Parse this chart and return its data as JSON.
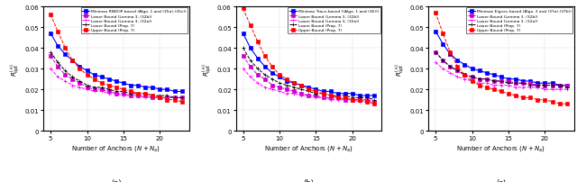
{
  "x": [
    5,
    6,
    7,
    8,
    9,
    10,
    11,
    12,
    13,
    14,
    15,
    16,
    17,
    18,
    19,
    20,
    21,
    22,
    23
  ],
  "subplots": [
    {
      "label": "(a)",
      "ylim": [
        0,
        0.06
      ],
      "yticks": [
        0,
        0.01,
        0.02,
        0.03,
        0.04,
        0.05,
        0.06
      ],
      "series": [
        {
          "name": "Minimax RNDOP-based (Algo. 1 and (35a)-(35c))",
          "color": "blue",
          "linestyle": "-",
          "marker": "s",
          "markersize": 2.5,
          "linewidth": 0.8,
          "dashed": false,
          "values": [
            0.047,
            0.041,
            0.037,
            0.034,
            0.031,
            0.029,
            0.027,
            0.026,
            0.025,
            0.024,
            0.023,
            0.022,
            0.022,
            0.021,
            0.021,
            0.02,
            0.02,
            0.019,
            0.019
          ]
        },
        {
          "name": "Lower Bound (Lemma 3, (32b))",
          "color": "#cc00cc",
          "linestyle": "--",
          "marker": "s",
          "markersize": 2.5,
          "linewidth": 0.7,
          "dashed": true,
          "values": [
            0.036,
            0.031,
            0.027,
            0.025,
            0.023,
            0.021,
            0.02,
            0.02,
            0.019,
            0.018,
            0.018,
            0.017,
            0.017,
            0.017,
            0.016,
            0.016,
            0.016,
            0.016,
            0.016
          ]
        },
        {
          "name": "Lower Bound (Lemma 3, (32a))",
          "color": "magenta",
          "linestyle": "--",
          "marker": "+",
          "markersize": 3.5,
          "linewidth": 0.7,
          "dashed": true,
          "values": [
            0.03,
            0.026,
            0.024,
            0.022,
            0.021,
            0.02,
            0.019,
            0.019,
            0.018,
            0.018,
            0.017,
            0.017,
            0.017,
            0.016,
            0.016,
            0.016,
            0.016,
            0.016,
            0.016
          ]
        },
        {
          "name": "Lower Bound (Prop. 7)",
          "color": "black",
          "linestyle": "--",
          "marker": "+",
          "markersize": 3.5,
          "linewidth": 0.7,
          "dashed": true,
          "values": [
            0.038,
            0.033,
            0.029,
            0.026,
            0.024,
            0.022,
            0.021,
            0.021,
            0.02,
            0.019,
            0.019,
            0.018,
            0.018,
            0.018,
            0.017,
            0.017,
            0.017,
            0.016,
            0.016
          ]
        },
        {
          "name": "Upper Bound (Prop. 7)",
          "color": "red",
          "linestyle": "--",
          "marker": "s",
          "markersize": 2.5,
          "linewidth": 0.7,
          "dashed": true,
          "values": [
            0.056,
            0.048,
            0.04,
            0.034,
            0.03,
            0.027,
            0.025,
            0.023,
            0.022,
            0.021,
            0.02,
            0.019,
            0.018,
            0.018,
            0.017,
            0.016,
            0.015,
            0.015,
            0.014
          ]
        }
      ]
    },
    {
      "label": "(b)",
      "ylim": [
        0,
        0.06
      ],
      "yticks": [
        0,
        0.01,
        0.02,
        0.03,
        0.04,
        0.05,
        0.06
      ],
      "series": [
        {
          "name": "Minimax Trace-based ((Algo. 1 and (36)))",
          "color": "blue",
          "linestyle": "-",
          "marker": "s",
          "markersize": 2.5,
          "linewidth": 0.8,
          "dashed": false,
          "values": [
            0.047,
            0.04,
            0.035,
            0.031,
            0.028,
            0.026,
            0.024,
            0.023,
            0.022,
            0.021,
            0.02,
            0.019,
            0.019,
            0.018,
            0.018,
            0.018,
            0.017,
            0.017,
            0.017
          ]
        },
        {
          "name": "Lower Bound (Lemma 3, (32b))",
          "color": "#cc00cc",
          "linestyle": "--",
          "marker": "s",
          "markersize": 2.5,
          "linewidth": 0.7,
          "dashed": true,
          "values": [
            0.036,
            0.031,
            0.027,
            0.025,
            0.022,
            0.021,
            0.02,
            0.019,
            0.018,
            0.017,
            0.017,
            0.016,
            0.016,
            0.016,
            0.015,
            0.015,
            0.015,
            0.015,
            0.014
          ]
        },
        {
          "name": "Lower Bound (Lemma 3, (32a))",
          "color": "magenta",
          "linestyle": "--",
          "marker": "+",
          "markersize": 3.5,
          "linewidth": 0.7,
          "dashed": true,
          "values": [
            0.03,
            0.026,
            0.023,
            0.021,
            0.02,
            0.019,
            0.018,
            0.018,
            0.017,
            0.017,
            0.016,
            0.016,
            0.015,
            0.015,
            0.015,
            0.015,
            0.014,
            0.014,
            0.014
          ]
        },
        {
          "name": "Lower Bound (Prop. 7)",
          "color": "black",
          "linestyle": "--",
          "marker": "+",
          "markersize": 3.5,
          "linewidth": 0.7,
          "dashed": true,
          "values": [
            0.04,
            0.034,
            0.03,
            0.027,
            0.025,
            0.023,
            0.022,
            0.021,
            0.02,
            0.019,
            0.018,
            0.018,
            0.017,
            0.017,
            0.017,
            0.016,
            0.016,
            0.016,
            0.015
          ]
        },
        {
          "name": "Upper Bound (Prop. 7)",
          "color": "red",
          "linestyle": "--",
          "marker": "s",
          "markersize": 2.5,
          "linewidth": 0.7,
          "dashed": true,
          "values": [
            0.059,
            0.051,
            0.043,
            0.036,
            0.031,
            0.027,
            0.025,
            0.023,
            0.022,
            0.02,
            0.019,
            0.018,
            0.017,
            0.016,
            0.016,
            0.015,
            0.015,
            0.014,
            0.013
          ]
        }
      ]
    },
    {
      "label": "(c)",
      "ylim": [
        0,
        0.06
      ],
      "yticks": [
        0,
        0.01,
        0.02,
        0.03,
        0.04,
        0.05,
        0.06
      ],
      "series": [
        {
          "name": "Minimax Eigvec-based (Algo. 2 and (37a)-(37b))",
          "color": "blue",
          "linestyle": "-",
          "marker": "s",
          "markersize": 2.5,
          "linewidth": 0.8,
          "dashed": false,
          "values": [
            0.048,
            0.042,
            0.037,
            0.034,
            0.032,
            0.03,
            0.029,
            0.028,
            0.027,
            0.026,
            0.025,
            0.025,
            0.024,
            0.024,
            0.023,
            0.023,
            0.023,
            0.022,
            0.022
          ]
        },
        {
          "name": "Lower Bound (Lemma 3, (32b))",
          "color": "#cc00cc",
          "linestyle": "--",
          "marker": "s",
          "markersize": 2.5,
          "linewidth": 0.7,
          "dashed": true,
          "values": [
            0.038,
            0.034,
            0.031,
            0.029,
            0.027,
            0.026,
            0.025,
            0.025,
            0.024,
            0.024,
            0.024,
            0.023,
            0.023,
            0.023,
            0.022,
            0.022,
            0.022,
            0.022,
            0.022
          ]
        },
        {
          "name": "Lower Bound (Lemma 3, (32a))",
          "color": "magenta",
          "linestyle": "--",
          "marker": "+",
          "markersize": 3.5,
          "linewidth": 0.7,
          "dashed": true,
          "values": [
            0.033,
            0.03,
            0.028,
            0.026,
            0.025,
            0.024,
            0.023,
            0.023,
            0.022,
            0.022,
            0.022,
            0.021,
            0.021,
            0.021,
            0.021,
            0.02,
            0.02,
            0.02,
            0.02
          ]
        },
        {
          "name": "Lower Bound (Prop. 7)",
          "color": "black",
          "linestyle": "--",
          "marker": "+",
          "markersize": 3.5,
          "linewidth": 0.7,
          "dashed": true,
          "values": [
            0.038,
            0.034,
            0.031,
            0.029,
            0.027,
            0.026,
            0.025,
            0.025,
            0.024,
            0.024,
            0.023,
            0.023,
            0.023,
            0.022,
            0.022,
            0.022,
            0.022,
            0.022,
            0.021
          ]
        },
        {
          "name": "Upper Bound (Prop. 7)",
          "color": "red",
          "linestyle": "--",
          "marker": "s",
          "markersize": 2.5,
          "linewidth": 0.7,
          "dashed": true,
          "values": [
            0.057,
            0.047,
            0.038,
            0.031,
            0.027,
            0.024,
            0.022,
            0.021,
            0.02,
            0.019,
            0.018,
            0.017,
            0.016,
            0.016,
            0.015,
            0.015,
            0.014,
            0.013,
            0.013
          ]
        }
      ]
    }
  ],
  "xlabel": "Number of Anchors $(N + N_a)$",
  "xlim": [
    4,
    24
  ],
  "xticks": [
    5,
    10,
    15,
    20
  ],
  "ytick_labels": [
    "0",
    "0.01",
    "0.02",
    "0.03",
    "0.04",
    "0.05",
    "0.06"
  ]
}
